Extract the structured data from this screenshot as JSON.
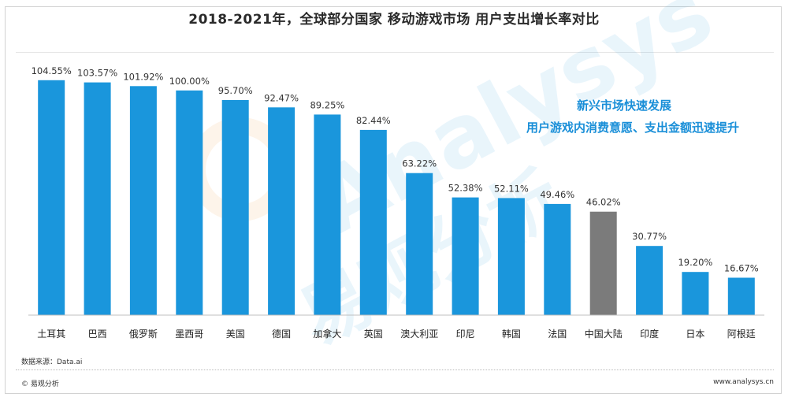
{
  "title": "2018-2021年，全球部分国家 移动游戏市场 用户支出增长率对比",
  "annotation": {
    "line1": "新兴市场快速发展",
    "line2": "用户游戏内消费意愿、支出金额迅速提升"
  },
  "watermark": {
    "text": "Analysys",
    "cn_text": "易观分析"
  },
  "footer": {
    "source": "数据来源：Data.ai",
    "copyright": "© 易观分析",
    "website": "www.analysys.cn"
  },
  "colors": {
    "bar": "#1a96dc",
    "highlight_bar": "#7b7b7b",
    "annotation": "#1a8fd8"
  },
  "chart_data": {
    "type": "bar",
    "title": "2018-2021年，全球部分国家 移动游戏市场 用户支出增长率对比",
    "categories": [
      "土耳其",
      "巴西",
      "俄罗斯",
      "墨西哥",
      "美国",
      "德国",
      "加拿大",
      "英国",
      "澳大利亚",
      "印尼",
      "韩国",
      "法国",
      "中国大陆",
      "印度",
      "日本",
      "阿根廷"
    ],
    "values": [
      104.55,
      103.57,
      101.92,
      100.0,
      95.7,
      92.47,
      89.25,
      82.44,
      63.22,
      52.38,
      52.11,
      49.46,
      46.02,
      30.77,
      19.2,
      16.67
    ],
    "value_labels": [
      "104.55%",
      "103.57%",
      "101.92%",
      "100.00%",
      "95.70%",
      "92.47%",
      "89.25%",
      "82.44%",
      "63.22%",
      "52.38%",
      "52.11%",
      "49.46%",
      "46.02%",
      "30.77%",
      "19.20%",
      "16.67%"
    ],
    "highlight_category": "中国大陆",
    "unit": "%",
    "ylim": [
      0,
      115
    ],
    "xlabel": "",
    "ylabel": "",
    "grid": false,
    "legend": "none"
  }
}
